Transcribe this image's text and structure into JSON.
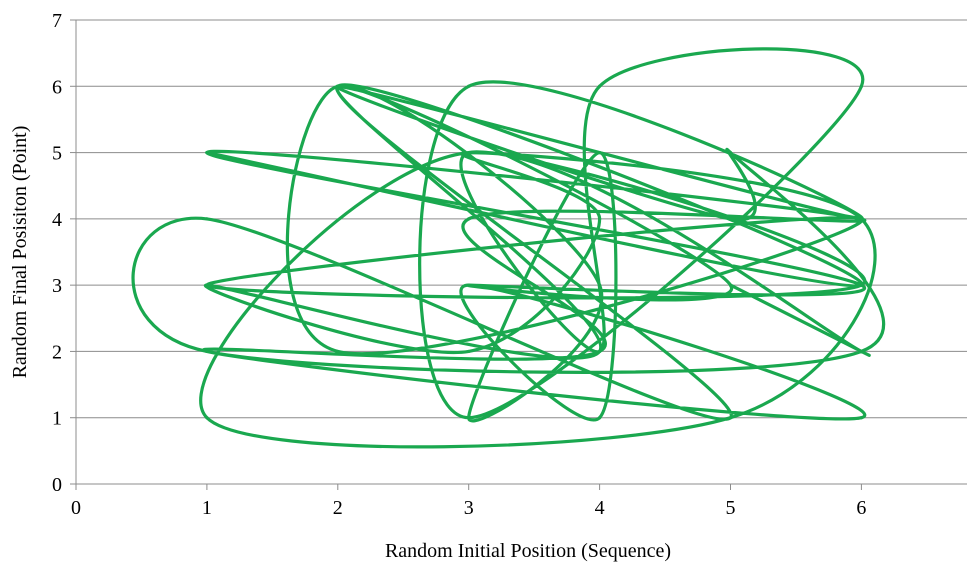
{
  "chart_data": {
    "type": "scatter",
    "title": "",
    "xlabel": "Random Initial Position (Sequence)",
    "ylabel": "Random Final Posisiton (Point)",
    "xlim": [
      0,
      7
    ],
    "ylim": [
      0,
      7
    ],
    "x_ticks": [
      "0",
      "1",
      "2",
      "3",
      "4",
      "5",
      "6"
    ],
    "y_ticks": [
      "0",
      "1",
      "2",
      "3",
      "4",
      "5",
      "6",
      "7"
    ],
    "grid": "horizontal",
    "legend": "none",
    "smooth": true,
    "series": [
      {
        "color": "#1aa84f",
        "points": [
          [
            1,
            5
          ],
          [
            6,
            3
          ],
          [
            2,
            6
          ],
          [
            5,
            1
          ],
          [
            1,
            4
          ],
          [
            1,
            2
          ],
          [
            6,
            2
          ],
          [
            5,
            5
          ],
          [
            5,
            4
          ],
          [
            2,
            6
          ],
          [
            6,
            4
          ],
          [
            3,
            6
          ],
          [
            3,
            1
          ],
          [
            6,
            6
          ],
          [
            4,
            6
          ],
          [
            4,
            2
          ],
          [
            3,
            5
          ],
          [
            6,
            3
          ],
          [
            1,
            3
          ],
          [
            6,
            4
          ],
          [
            2,
            2
          ],
          [
            2,
            6
          ],
          [
            4,
            3
          ],
          [
            3,
            1
          ],
          [
            4,
            5
          ],
          [
            4,
            1
          ],
          [
            3,
            3
          ],
          [
            6,
            1
          ],
          [
            1,
            2
          ],
          [
            4,
            2
          ],
          [
            3,
            4
          ],
          [
            6,
            4
          ],
          [
            1,
            5
          ],
          [
            6,
            3
          ],
          [
            3,
            3
          ],
          [
            5,
            3
          ],
          [
            2,
            6
          ],
          [
            4,
            2
          ],
          [
            1,
            3
          ],
          [
            3,
            2
          ],
          [
            4,
            4
          ],
          [
            3,
            5
          ],
          [
            6,
            4
          ],
          [
            5,
            1
          ],
          [
            1,
            1
          ],
          [
            3,
            5
          ],
          [
            6,
            2
          ],
          [
            5,
            3
          ]
        ]
      }
    ]
  }
}
